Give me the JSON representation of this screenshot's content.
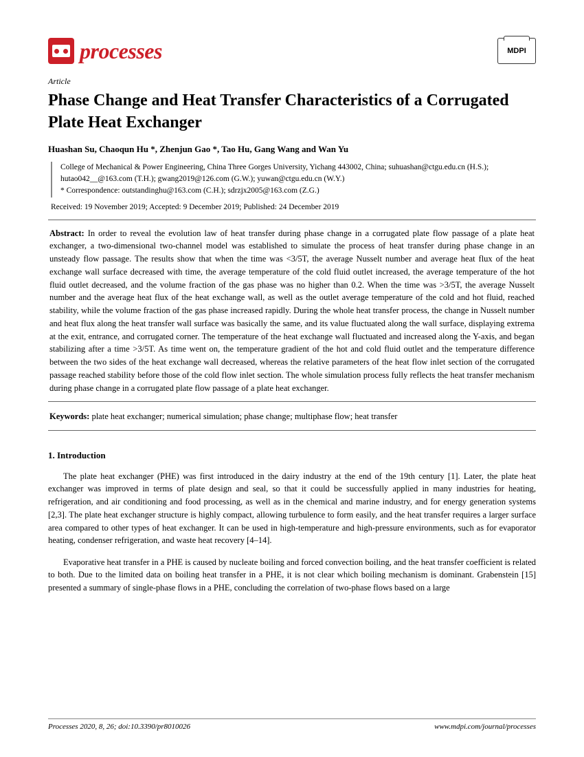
{
  "journal": {
    "name": "processes",
    "publisher": "MDPI",
    "brand_color": "#cc1f28"
  },
  "article": {
    "type": "Article",
    "title": "Phase Change and Heat Transfer Characteristics of a Corrugated Plate Heat Exchanger",
    "authors": "Huashan Su, Chaoqun Hu *, Zhenjun Gao *, Tao Hu, Gang Wang and Wan Yu",
    "affiliation": "College of Mechanical & Power Engineering, China Three Gorges University, Yichang 443002, China; suhuashan@ctgu.edu.cn (H.S.); hutao042__@163.com (T.H.); gwang2019@126.com (G.W.); yuwan@ctgu.edu.cn (W.Y.)",
    "correspondence": "* Correspondence: outstandinghu@163.com (C.H.); sdrzjx2005@163.com (Z.G.)",
    "dates": "Received: 19 November 2019; Accepted: 9 December 2019; Published: 24 December 2019",
    "abstract_label": "Abstract:",
    "abstract": " In order to reveal the evolution law of heat transfer during phase change in a corrugated plate flow passage of a plate heat exchanger, a two-dimensional two-channel model was established to simulate the process of heat transfer during phase change in an unsteady flow passage. The results show that when the time was <3/5T, the average Nusselt number and average heat flux of the heat exchange wall surface decreased with time, the average temperature of the cold fluid outlet increased, the average temperature of the hot fluid outlet decreased, and the volume fraction of the gas phase was no higher than 0.2. When the time was >3/5T, the average Nusselt number and the average heat flux of the heat exchange wall, as well as the outlet average temperature of the cold and hot fluid, reached stability, while the volume fraction of the gas phase increased rapidly. During the whole heat transfer process, the change in Nusselt number and heat flux along the heat transfer wall surface was basically the same, and its value fluctuated along the wall surface, displaying extrema at the exit, entrance, and corrugated corner. The temperature of the heat exchange wall fluctuated and increased along the Y-axis, and began stabilizing after a time >3/5T. As time went on, the temperature gradient of the hot and cold fluid outlet and the temperature difference between the two sides of the heat exchange wall decreased, whereas the relative parameters of the heat flow inlet section of the corrugated passage reached stability before those of the cold flow inlet section. The whole simulation process fully reflects the heat transfer mechanism during phase change in a corrugated plate flow passage of a plate heat exchanger.",
    "keywords_label": "Keywords:",
    "keywords": " plate heat exchanger; numerical simulation; phase change; multiphase flow; heat transfer"
  },
  "section1": {
    "heading": "1. Introduction",
    "para1": "The plate heat exchanger (PHE) was first introduced in the dairy industry at the end of the 19th century [1]. Later, the plate heat exchanger was improved in terms of plate design and seal, so that it could be successfully applied in many industries for heating, refrigeration, and air conditioning and food processing, as well as in the chemical and marine industry, and for energy generation systems [2,3]. The plate heat exchanger structure is highly compact, allowing turbulence to form easily, and the heat transfer requires a larger surface area compared to other types of heat exchanger. It can be used in high-temperature and high-pressure environments, such as for evaporator heating, condenser refrigeration, and waste heat recovery [4–14].",
    "para2": "Evaporative heat transfer in a PHE is caused by nucleate boiling and forced convection boiling, and the heat transfer coefficient is related to both. Due to the limited data on boiling heat transfer in a PHE, it is not clear which boiling mechanism is dominant. Grabenstein [15] presented a summary of single-phase flows in a PHE, concluding the correlation of two-phase flows based on a large"
  },
  "footer": {
    "left": "Processes 2020, 8, 26; doi:10.3390/pr8010026",
    "right": "www.mdpi.com/journal/processes"
  }
}
